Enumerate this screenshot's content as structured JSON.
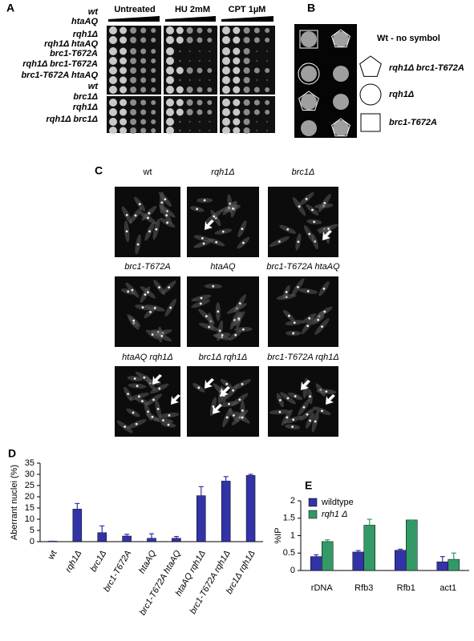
{
  "panels": {
    "a": {
      "label": "A",
      "headers": [
        "Untreated",
        "HU 2mM",
        "CPT 1µM"
      ],
      "strains": [
        "wt",
        "htaAQ",
        "rqh1Δ",
        "rqh1Δ htaAQ",
        "brc1-T672A",
        "rqh1Δ  brc1-T672A",
        "brc1-T672A htaAQ",
        "wt",
        "brc1Δ",
        "rqh1Δ",
        "rqh1Δ brc1Δ"
      ]
    },
    "b": {
      "label": "B",
      "legend": [
        "Wt - no symbol",
        "rqh1Δ brc1-T672A",
        "rqh1Δ",
        "brc1-T672A"
      ]
    },
    "c": {
      "label": "C",
      "images": [
        "wt",
        "rqh1Δ",
        "brc1Δ",
        "brc1-T672A",
        "htaAQ",
        "brc1-T672A htaAQ",
        "htaAQ rqh1Δ",
        "brc1Δ rqh1Δ",
        "brc1-T672A rqh1Δ"
      ]
    }
  },
  "chart_data": [
    {
      "type": "bar",
      "panel_label": "D",
      "ylabel": "Aberrant nuclei (%)",
      "categories": [
        "wt",
        "rqh1Δ",
        "brc1Δ",
        "brc1-T672A",
        "htaAQ",
        "brc1-T672A htaAQ",
        "htaAQ rqh1Δ",
        "brc1-T672A rqh1Δ",
        "brc1Δ rqh1Δ"
      ],
      "values": [
        0.2,
        14.5,
        4,
        2.5,
        1.5,
        1.5,
        20.5,
        27,
        29.5
      ],
      "errors": [
        0,
        2.5,
        3,
        0.8,
        2,
        0.8,
        4,
        2,
        0.5
      ],
      "color": "#3333a8",
      "ylim": [
        0,
        35
      ],
      "yticks": [
        0,
        5,
        10,
        15,
        20,
        25,
        30,
        35
      ]
    },
    {
      "type": "bar",
      "panel_label": "E",
      "ylabel": "%IP",
      "categories": [
        "rDNA",
        "Rfb3",
        "Rfb1",
        "act1"
      ],
      "series": [
        {
          "name": "wildtype",
          "color": "#3333a8",
          "values": [
            0.4,
            0.53,
            0.58,
            0.25
          ],
          "errors": [
            0.05,
            0.04,
            0.03,
            0.15
          ]
        },
        {
          "name": "rqh1 Δ",
          "color": "#339966",
          "values": [
            0.83,
            1.3,
            1.45,
            0.32
          ],
          "errors": [
            0.05,
            0.17,
            0,
            0.18
          ]
        }
      ],
      "ylim": [
        0,
        2
      ],
      "yticks": [
        0,
        0.5,
        1,
        1.5,
        2
      ],
      "legend": "upper left"
    }
  ]
}
